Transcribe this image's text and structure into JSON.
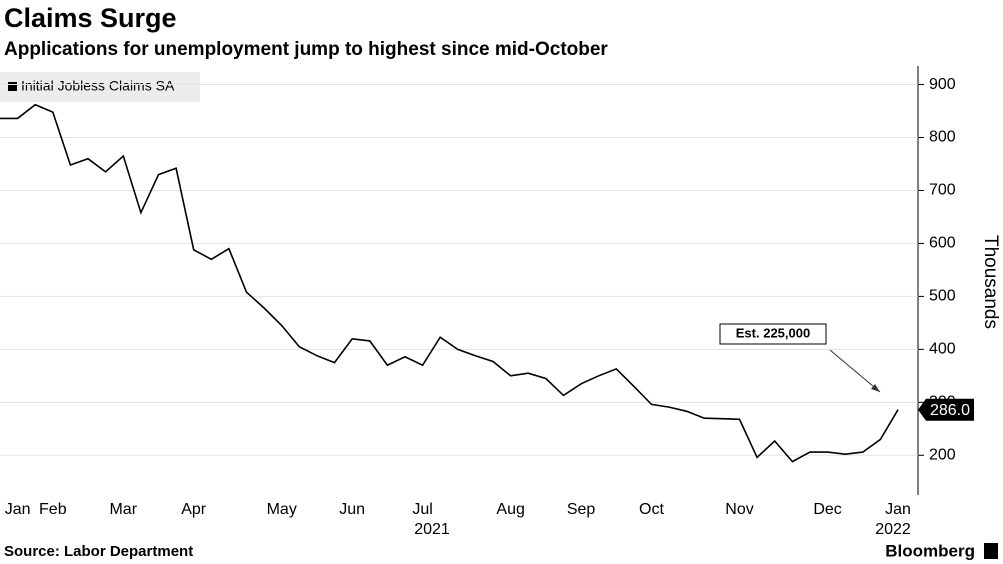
{
  "chart_data": {
    "type": "line",
    "title": "Claims Surge",
    "subtitle": "Applications for unemployment jump to highest since mid-October",
    "y_label": "Thousands",
    "source": "Source: Labor Department",
    "brand": "Bloomberg",
    "year_labels": [
      "2021",
      "2022"
    ],
    "annotation": "Est. 225,000",
    "last_label": "286.0",
    "categories": [
      null,
      "Jan",
      null,
      "Feb",
      null,
      null,
      null,
      "Mar",
      null,
      null,
      null,
      "Apr",
      null,
      null,
      null,
      null,
      "May",
      null,
      null,
      null,
      "Jun",
      null,
      null,
      null,
      "Jul",
      null,
      null,
      null,
      null,
      "Aug",
      null,
      null,
      null,
      "Sep",
      null,
      null,
      null,
      "Oct",
      null,
      null,
      null,
      null,
      "Nov",
      null,
      null,
      null,
      null,
      "Dec",
      null,
      null,
      null,
      "Jan"
    ],
    "series": [
      {
        "name": "Initial Jobless Claims SA",
        "color": "#000000",
        "values": [
          836,
          836,
          862,
          848,
          748,
          760,
          735,
          765,
          658,
          730,
          742,
          588,
          570,
          590,
          508,
          478,
          445,
          405,
          388,
          375,
          420,
          416,
          370,
          386,
          370,
          423,
          400,
          388,
          377,
          350,
          355,
          345,
          313,
          335,
          350,
          363,
          330,
          296,
          291,
          283,
          270,
          269,
          268,
          196,
          227,
          188,
          206,
          206,
          202,
          206,
          230,
          286
        ]
      }
    ],
    "ylim": [
      125,
      935
    ],
    "yticks": [
      200,
      300,
      400,
      500,
      600,
      700,
      800,
      900
    ],
    "grid": true
  }
}
